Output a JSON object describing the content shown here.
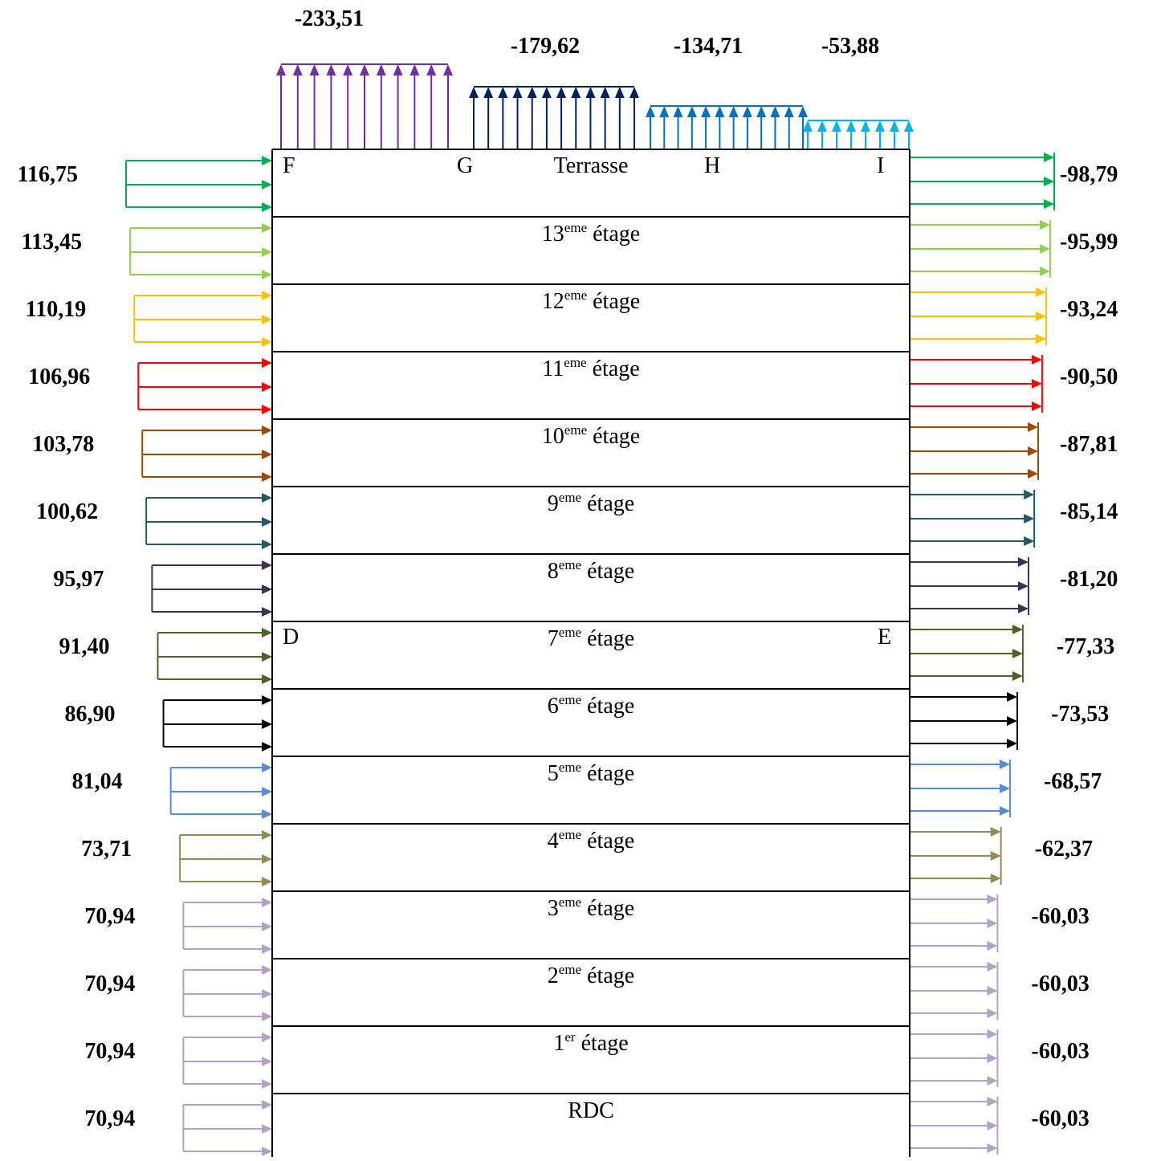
{
  "roof": {
    "segments": [
      {
        "value": "-233,51",
        "color": "#7030A0"
      },
      {
        "value": "-179,62",
        "color": "#002060"
      },
      {
        "value": "-134,71",
        "color": "#0070C0"
      },
      {
        "value": "-53,88",
        "color": "#00B0F0"
      }
    ]
  },
  "nodes": {
    "F": "F",
    "G": "G",
    "H": "H",
    "I": "I",
    "D": "D",
    "E": "E"
  },
  "levels": [
    {
      "num": "",
      "sup": "",
      "word": "Terrasse",
      "left": "116,75",
      "right": "-98,79",
      "color": "#00B050"
    },
    {
      "num": "13",
      "sup": "eme",
      "word": "étage",
      "left": "113,45",
      "right": "-95,99",
      "color": "#92D050"
    },
    {
      "num": "12",
      "sup": "eme",
      "word": "étage",
      "left": "110,19",
      "right": "-93,24",
      "color": "#FFC000"
    },
    {
      "num": "11",
      "sup": "eme",
      "word": "étage",
      "left": "106,96",
      "right": "-90,50",
      "color": "#FF0000"
    },
    {
      "num": "10",
      "sup": "eme",
      "word": "étage",
      "left": "103,78",
      "right": "-87,81",
      "color": "#9C4A06"
    },
    {
      "num": "9",
      "sup": "eme",
      "word": "étage",
      "left": "100,62",
      "right": "-85,14",
      "color": "#215967"
    },
    {
      "num": "8",
      "sup": "eme",
      "word": "étage",
      "left": "95,97",
      "right": "-81,20",
      "color": "#403152"
    },
    {
      "num": "7",
      "sup": "eme",
      "word": "étage",
      "left": "91,40",
      "right": "-77,33",
      "color": "#4F6228"
    },
    {
      "num": "6",
      "sup": "eme",
      "word": "étage",
      "left": "86,90",
      "right": "-73,53",
      "color": "#000000"
    },
    {
      "num": "5",
      "sup": "eme",
      "word": "étage",
      "left": "81,04",
      "right": "-68,57",
      "color": "#558ED5"
    },
    {
      "num": "4",
      "sup": "eme",
      "word": "étage",
      "left": "73,71",
      "right": "-62,37",
      "color": "#948A54"
    },
    {
      "num": "3",
      "sup": "eme",
      "word": "étage",
      "left": "70,94",
      "right": "-60,03",
      "color": "#B3A2C7"
    },
    {
      "num": "2",
      "sup": "eme",
      "word": "étage",
      "left": "70,94",
      "right": "-60,03",
      "color": "#B3A2C7"
    },
    {
      "num": "1",
      "sup": "er",
      "word": "étage",
      "left": "70,94",
      "right": "-60,03",
      "color": "#B3A2C7"
    },
    {
      "num": "",
      "sup": "",
      "word": "RDC",
      "left": "70,94",
      "right": "-60,03",
      "color": "#B3A2C7"
    }
  ]
}
